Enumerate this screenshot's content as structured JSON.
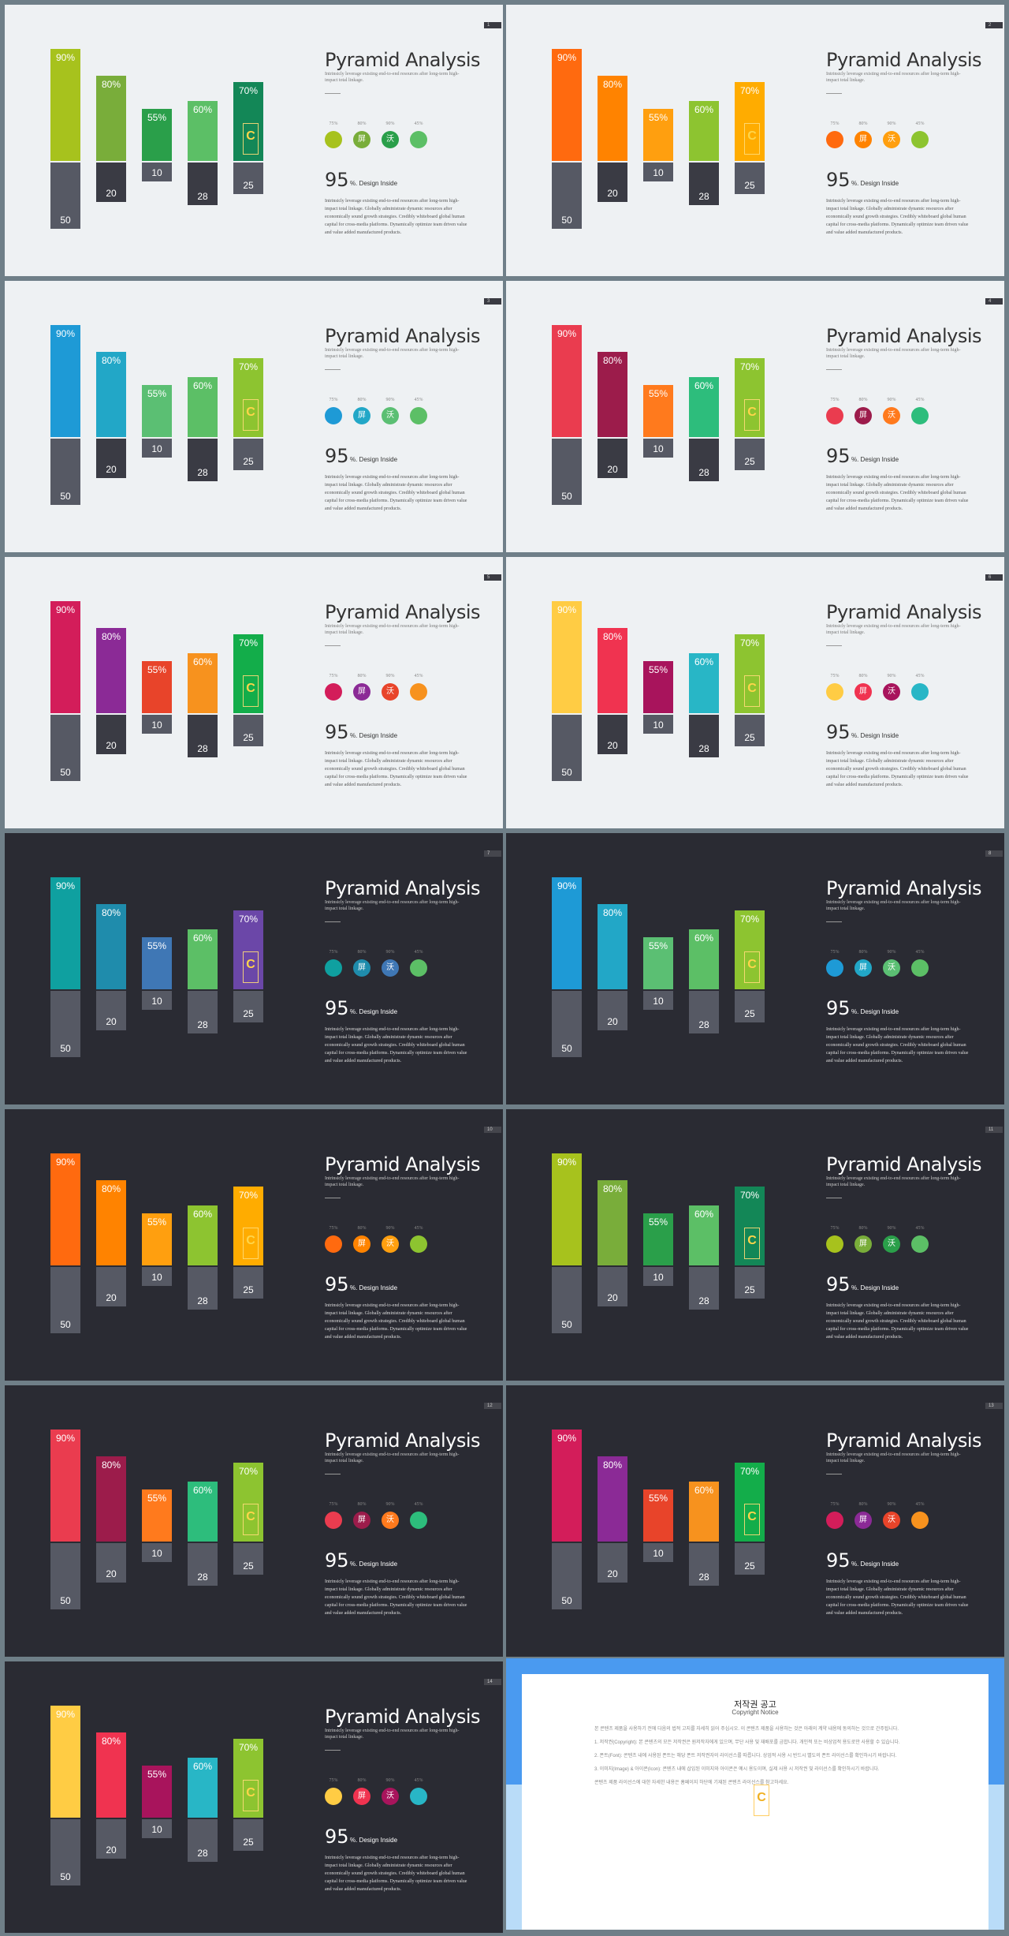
{
  "slides": [
    {
      "theme": "light",
      "page": "1",
      "colors": [
        "#a7c21d",
        "#79ad3a",
        "#2a9f4a",
        "#5cbf66",
        "#138757"
      ],
      "circles": [
        "#a7c21d",
        "#79ad3a",
        "#2a9f4a",
        "#5cbf66"
      ]
    },
    {
      "theme": "light",
      "page": "2",
      "colors": [
        "#ff6a0f",
        "#ff8300",
        "#ff9f0f",
        "#8dc430",
        "#ffac00"
      ],
      "circles": [
        "#ff6a0f",
        "#ff8300",
        "#ff9f0f",
        "#8dc430"
      ]
    },
    {
      "theme": "light",
      "page": "3",
      "colors": [
        "#1e9ad6",
        "#22a7c7",
        "#5bbf73",
        "#5cbf66",
        "#8dc430"
      ],
      "circles": [
        "#1e9ad6",
        "#22a7c7",
        "#5bbf73",
        "#5cbf66"
      ]
    },
    {
      "theme": "light",
      "page": "4",
      "colors": [
        "#ea3c4f",
        "#9c1c4b",
        "#ff7a1d",
        "#2dbd7c",
        "#8dc430"
      ],
      "circles": [
        "#ea3c4f",
        "#9c1c4b",
        "#ff7a1d",
        "#2dbd7c"
      ]
    },
    {
      "theme": "light",
      "page": "5",
      "colors": [
        "#d31d5a",
        "#8b2a96",
        "#e8442a",
        "#f7921e",
        "#13ad4a"
      ],
      "circles": [
        "#d31d5a",
        "#8b2a96",
        "#e8442a",
        "#f7921e"
      ]
    },
    {
      "theme": "light",
      "page": "6",
      "colors": [
        "#ffcc44",
        "#f03350",
        "#a8145c",
        "#28b6c6",
        "#8dc430"
      ],
      "circles": [
        "#ffcc44",
        "#f03350",
        "#a8145c",
        "#28b6c6"
      ]
    },
    {
      "theme": "dark",
      "page": "7",
      "colors": [
        "#0fa0a0",
        "#1f8cac",
        "#3f77b5",
        "#5cbf66",
        "#6b47a8"
      ],
      "circles": [
        "#0fa0a0",
        "#1f8cac",
        "#3f77b5",
        "#5cbf66"
      ]
    },
    {
      "theme": "dark",
      "page": "8",
      "colors": [
        "#1e9ad6",
        "#22a7c7",
        "#5bbf73",
        "#5cbf66",
        "#8dc430"
      ],
      "circles": [
        "#1e9ad6",
        "#22a7c7",
        "#5bbf73",
        "#5cbf66"
      ]
    },
    {
      "theme": "dark",
      "page": "10",
      "colors": [
        "#ff6a0f",
        "#ff8300",
        "#ff9f0f",
        "#8dc430",
        "#ffac00"
      ],
      "circles": [
        "#ff6a0f",
        "#ff8300",
        "#ff9f0f",
        "#8dc430"
      ]
    },
    {
      "theme": "dark",
      "page": "11",
      "colors": [
        "#a7c21d",
        "#79ad3a",
        "#2a9f4a",
        "#5cbf66",
        "#138757"
      ],
      "circles": [
        "#a7c21d",
        "#79ad3a",
        "#2a9f4a",
        "#5cbf66"
      ]
    },
    {
      "theme": "dark",
      "page": "12",
      "colors": [
        "#ea3c4f",
        "#9c1c4b",
        "#ff7a1d",
        "#2dbd7c",
        "#8dc430"
      ],
      "circles": [
        "#ea3c4f",
        "#9c1c4b",
        "#ff7a1d",
        "#2dbd7c"
      ]
    },
    {
      "theme": "dark",
      "page": "13",
      "colors": [
        "#d31d5a",
        "#8b2a96",
        "#e8442a",
        "#f7921e",
        "#13ad4a"
      ],
      "circles": [
        "#d31d5a",
        "#8b2a96",
        "#e8442a",
        "#f7921e"
      ]
    },
    {
      "theme": "dark",
      "page": "14",
      "colors": [
        "#ffcc44",
        "#f03350",
        "#a8145c",
        "#28b6c6",
        "#8dc430"
      ],
      "circles": [
        "#ffcc44",
        "#f03350",
        "#a8145c",
        "#28b6c6"
      ]
    }
  ],
  "common": {
    "title": "Pyramid Analysis",
    "subtitle": "Intrinsicly leverage existing end-to-end resources after long-term high-impact total linkage.",
    "bar_pcts": [
      "90%",
      "80%",
      "55%",
      "60%",
      "70%"
    ],
    "bar_nums": [
      "50",
      "20",
      "10",
      "28",
      "25"
    ],
    "circle_labels": [
      "75%",
      "80%",
      "90%",
      "45%"
    ],
    "circle_glyphs": [
      "",
      "屏",
      "沃",
      ""
    ],
    "big_number": "95",
    "big_suffix": "%. Design Inside",
    "paragraph": "Intrinsicly leverage existing end-to-end resources after long-term high-impact total linkage. Globally administrate dynamic resources after economically sound growth strategies. Credibly whiteboard global human capital for cross-media platforms. Dynamically optimize team driven value and value added manufactured products.",
    "badge_letter": "C"
  },
  "copyright": {
    "title": "저작권 공고",
    "subtitle": "Copyright Notice",
    "paragraphs": [
      "본 콘텐츠 제품을 사용하기 전에 다음의 법적 고지를 자세히 읽어 주십시오. 이 콘텐츠 제품을 사용하는 것은 아래의 계약 내용에 동의하는 것으로 간주됩니다.",
      "1. 저작권(Copyright): 본 콘텐츠의 모든 저작권은 원저작자에게 있으며, 무단 사용 및 재배포를 금합니다. 개인적 또는 비상업적 용도로만 사용할 수 있습니다.",
      "2. 폰트(Font): 콘텐츠 내에 사용된 폰트는 해당 폰트 저작권자의 라이선스를 따릅니다. 상업적 사용 시 반드시 별도의 폰트 라이선스를 확인하시기 바랍니다.",
      "3. 이미지(Image) & 아이콘(Icon): 콘텐츠 내에 삽입된 이미지와 아이콘은 예시 용도이며, 실제 사용 시 저작권 및 라이선스를 확인하시기 바랍니다.",
      "콘텐츠 제품 라이선스에 대한 자세한 내용은 홈페이지 하단에 기재된 콘텐츠 라이선스를 참고하세요."
    ],
    "badge_letter": "C"
  }
}
